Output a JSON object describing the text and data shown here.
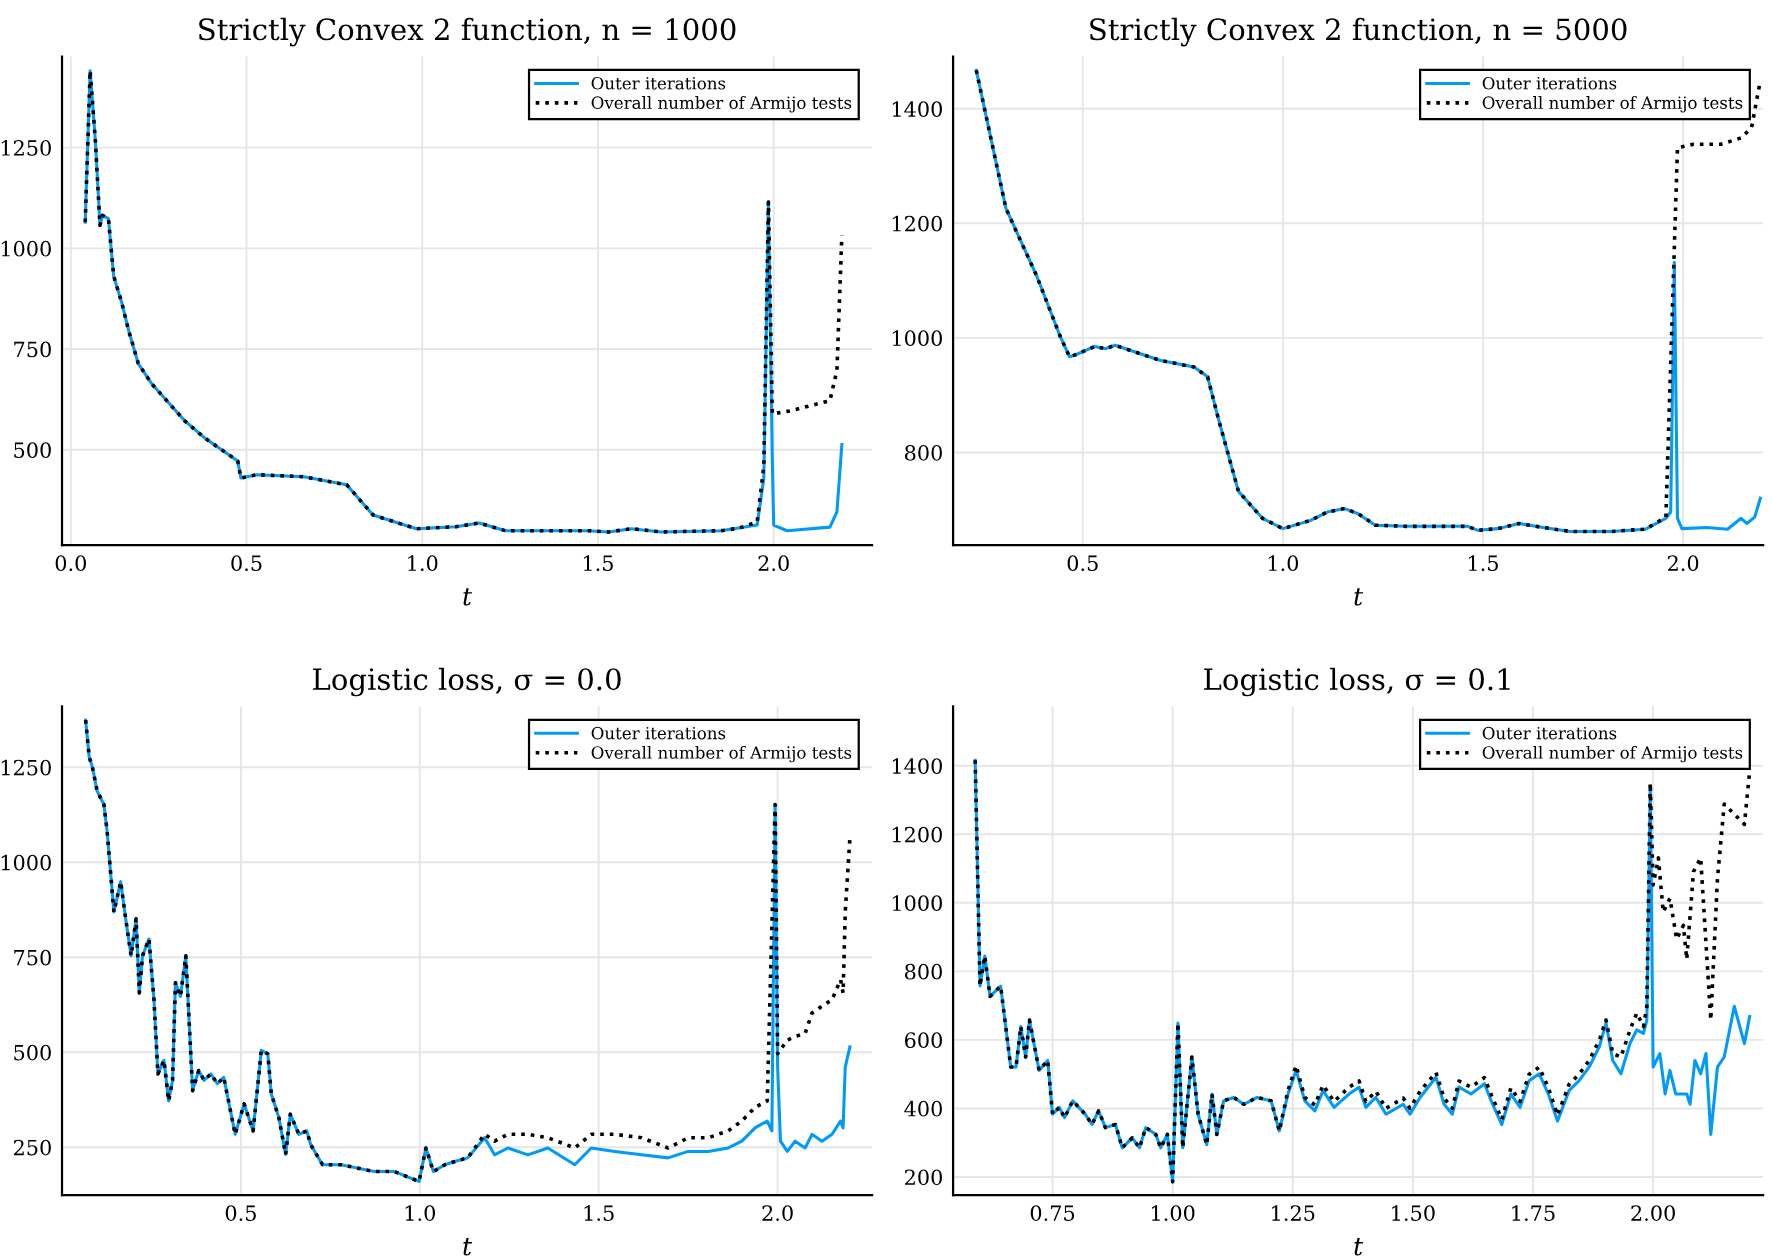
{
  "chart_data": [
    {
      "type": "line",
      "title": "Strictly Convex 2 function, n = 1000",
      "xlabel": "t",
      "xlim": [
        -0.025,
        2.28
      ],
      "ylim": [
        263,
        1476
      ],
      "xticks": [
        {
          "value": 0.0,
          "label": "0.0"
        },
        0.5,
        {
          "value": 1.0,
          "label": "1.0"
        },
        1.5,
        {
          "value": 2.0,
          "label": "2.0"
        }
      ],
      "yticks": [
        500,
        750,
        1000,
        1250
      ],
      "grid": true,
      "legend": "top right",
      "tick_labels": "both",
      "series": [
        {
          "name": "Outer iterations",
          "color": "#009af9",
          "line_style": "solid",
          "x": [
            0.041,
            0.055,
            0.07,
            0.083,
            0.09,
            0.107,
            0.122,
            0.145,
            0.164,
            0.192,
            0.23,
            0.324,
            0.38,
            0.475,
            0.484,
            0.53,
            0.663,
            0.785,
            0.86,
            0.983,
            1.096,
            1.162,
            1.237,
            1.473,
            1.53,
            1.595,
            1.68,
            1.85,
            1.953,
            1.972,
            1.985,
            1.996,
            2.0,
            2.038,
            2.16,
            2.18,
            2.194
          ],
          "values": [
            1065,
            1441,
            1266,
            1057,
            1082,
            1074,
            931,
            865,
            798,
            714,
            664,
            572,
            530,
            472,
            430,
            438,
            433,
            413,
            338,
            304,
            309,
            318,
            299,
            299,
            296,
            304,
            296,
            299,
            313,
            430,
            1115,
            480,
            313,
            299,
            308,
            346,
            513
          ]
        },
        {
          "name": "Overall number of Armijo tests",
          "color": "#000000",
          "line_style": "dotted",
          "x": [
            0.041,
            0.055,
            0.07,
            0.083,
            0.09,
            0.107,
            0.122,
            0.145,
            0.164,
            0.192,
            0.23,
            0.324,
            0.38,
            0.475,
            0.484,
            0.53,
            0.663,
            0.785,
            0.86,
            0.983,
            1.096,
            1.162,
            1.237,
            1.473,
            1.53,
            1.595,
            1.68,
            1.85,
            1.9,
            1.953,
            1.972,
            1.985,
            1.996,
            2.05,
            2.16,
            2.18,
            2.194
          ],
          "values": [
            1065,
            1441,
            1266,
            1057,
            1082,
            1074,
            931,
            865,
            798,
            714,
            664,
            572,
            530,
            472,
            430,
            438,
            433,
            413,
            338,
            304,
            309,
            318,
            299,
            299,
            296,
            304,
            296,
            299,
            305,
            321,
            460,
            1115,
            589,
            597,
            622,
            697,
            1032
          ]
        }
      ]
    },
    {
      "type": "line",
      "title": "Strictly Convex 2 function, n = 5000",
      "xlabel": "t",
      "xlim": [
        0.176,
        2.2
      ],
      "ylim": [
        638,
        1491
      ],
      "xticks": [
        0.5,
        {
          "value": 1.0,
          "label": "1.0"
        },
        1.5,
        {
          "value": 2.0,
          "label": "2.0"
        }
      ],
      "yticks": [
        800,
        1000,
        1200,
        1400
      ],
      "grid": true,
      "legend": "top right",
      "tick_labels": "both",
      "series": [
        {
          "name": "Outer iterations",
          "color": "#009af9",
          "line_style": "solid",
          "x": [
            0.234,
            0.308,
            0.385,
            0.444,
            0.467,
            0.484,
            0.53,
            0.556,
            0.581,
            0.692,
            0.778,
            0.812,
            0.838,
            0.889,
            0.949,
            1.0,
            1.068,
            1.111,
            1.154,
            1.188,
            1.231,
            1.308,
            1.462,
            1.487,
            1.538,
            1.59,
            1.65,
            1.718,
            1.82,
            1.906,
            1.957,
            1.969,
            1.978,
            1.986,
            1.997,
            2.06,
            2.111,
            2.145,
            2.159,
            2.179,
            2.193
          ],
          "values": [
            1467,
            1226,
            1108,
            1002,
            967,
            971,
            985,
            981,
            987,
            961,
            949,
            932,
            861,
            732,
            685,
            667,
            681,
            696,
            702,
            693,
            673,
            671,
            671,
            664,
            667,
            676,
            669,
            662,
            662,
            666,
            685,
            696,
            1132,
            685,
            667,
            669,
            666,
            685,
            676,
            687,
            720
          ]
        },
        {
          "name": "Overall number of Armijo tests",
          "color": "#000000",
          "line_style": "dotted",
          "x": [
            0.234,
            0.308,
            0.385,
            0.444,
            0.467,
            0.484,
            0.53,
            0.556,
            0.581,
            0.692,
            0.778,
            0.812,
            0.838,
            0.889,
            0.949,
            1.0,
            1.068,
            1.111,
            1.154,
            1.188,
            1.231,
            1.308,
            1.462,
            1.487,
            1.538,
            1.59,
            1.65,
            1.718,
            1.82,
            1.906,
            1.923,
            1.957,
            1.978,
            1.986,
            2.026,
            2.094,
            2.145,
            2.171,
            2.193
          ],
          "values": [
            1467,
            1226,
            1108,
            1002,
            967,
            971,
            985,
            981,
            987,
            961,
            949,
            932,
            861,
            732,
            685,
            667,
            681,
            696,
            702,
            693,
            673,
            671,
            671,
            664,
            667,
            676,
            669,
            662,
            662,
            666,
            673,
            687,
            1155,
            1332,
            1338,
            1338,
            1349,
            1367,
            1449
          ]
        }
      ]
    },
    {
      "type": "line",
      "title": "Logistic loss, σ = 0.0",
      "xlabel": "t",
      "xlim": [
        0.0,
        2.264
      ],
      "ylim": [
        124,
        1410
      ],
      "xticks": [
        0.5,
        {
          "value": 1.0,
          "label": "1.0"
        },
        1.5,
        {
          "value": 2.0,
          "label": "2.0"
        }
      ],
      "yticks": [
        250,
        500,
        750,
        1000,
        1250
      ],
      "grid": true,
      "legend": "top right",
      "tick_labels": "both",
      "series": [
        {
          "name": "Outer iterations",
          "color": "#009af9",
          "line_style": "solid",
          "x": [
            0.066,
            0.076,
            0.085,
            0.098,
            0.117,
            0.126,
            0.145,
            0.164,
            0.178,
            0.193,
            0.207,
            0.216,
            0.225,
            0.243,
            0.257,
            0.268,
            0.285,
            0.298,
            0.309,
            0.317,
            0.331,
            0.346,
            0.365,
            0.382,
            0.397,
            0.416,
            0.434,
            0.452,
            0.484,
            0.509,
            0.534,
            0.557,
            0.575,
            0.585,
            0.606,
            0.625,
            0.638,
            0.662,
            0.684,
            0.695,
            0.728,
            0.78,
            0.826,
            0.873,
            0.929,
            0.976,
            0.998,
            1.017,
            1.038,
            1.07,
            1.1,
            1.134,
            1.181,
            1.209,
            1.246,
            1.302,
            1.358,
            1.433,
            1.479,
            1.545,
            1.62,
            1.694,
            1.75,
            1.806,
            1.862,
            1.9,
            1.937,
            1.971,
            1.984,
            1.993,
            2.0,
            2.008,
            2.027,
            2.049,
            2.077,
            2.096,
            2.124,
            2.152,
            2.176,
            2.183,
            2.189,
            2.202
          ],
          "values": [
            1374,
            1277,
            1250,
            1188,
            1152,
            1082,
            869,
            949,
            851,
            754,
            851,
            656,
            754,
            798,
            638,
            443,
            479,
            372,
            426,
            683,
            647,
            754,
            399,
            452,
            426,
            443,
            417,
            434,
            284,
            364,
            293,
            505,
            496,
            390,
            328,
            231,
            337,
            284,
            293,
            257,
            204,
            204,
            195,
            186,
            186,
            168,
            160,
            248,
            186,
            204,
            213,
            222,
            275,
            230,
            248,
            230,
            248,
            204,
            248,
            239,
            230,
            222,
            239,
            239,
            248,
            266,
            301,
            319,
            293,
            1152,
            461,
            266,
            239,
            266,
            248,
            284,
            266,
            284,
            319,
            301,
            461,
            514
          ]
        },
        {
          "name": "Overall number of Armijo tests",
          "color": "#000000",
          "line_style": "dotted",
          "x": [
            0.066,
            0.076,
            0.085,
            0.098,
            0.117,
            0.126,
            0.145,
            0.164,
            0.178,
            0.193,
            0.207,
            0.216,
            0.225,
            0.243,
            0.257,
            0.268,
            0.285,
            0.298,
            0.309,
            0.317,
            0.331,
            0.346,
            0.365,
            0.382,
            0.397,
            0.416,
            0.434,
            0.452,
            0.484,
            0.509,
            0.534,
            0.557,
            0.575,
            0.585,
            0.606,
            0.625,
            0.638,
            0.662,
            0.684,
            0.695,
            0.728,
            0.78,
            0.826,
            0.873,
            0.929,
            0.976,
            0.998,
            1.017,
            1.038,
            1.07,
            1.1,
            1.134,
            1.181,
            1.209,
            1.246,
            1.302,
            1.358,
            1.433,
            1.479,
            1.545,
            1.62,
            1.694,
            1.75,
            1.806,
            1.862,
            1.9,
            1.937,
            1.971,
            1.993,
            2.0,
            2.027,
            2.049,
            2.077,
            2.096,
            2.124,
            2.152,
            2.176,
            2.183,
            2.189,
            2.202
          ],
          "values": [
            1374,
            1277,
            1250,
            1188,
            1152,
            1082,
            869,
            949,
            851,
            754,
            851,
            656,
            754,
            798,
            638,
            443,
            479,
            372,
            426,
            683,
            647,
            754,
            399,
            452,
            426,
            443,
            417,
            434,
            284,
            364,
            293,
            505,
            496,
            390,
            328,
            231,
            337,
            284,
            293,
            257,
            204,
            204,
            195,
            186,
            186,
            168,
            160,
            248,
            186,
            204,
            213,
            222,
            284,
            266,
            284,
            284,
            275,
            248,
            284,
            284,
            275,
            248,
            275,
            275,
            293,
            319,
            355,
            372,
            1152,
            496,
            532,
            541,
            550,
            603,
            621,
            638,
            691,
            656,
            869,
            1064
          ]
        }
      ]
    },
    {
      "type": "line",
      "title": "Logistic loss, σ = 0.1",
      "xlabel": "t",
      "xlim": [
        0.543,
        2.229
      ],
      "ylim": [
        147,
        1573
      ],
      "xticks": [
        0.75,
        {
          "value": 1.0,
          "label": "1.00"
        },
        1.25,
        {
          "value": 1.5,
          "label": "1.50"
        },
        1.75,
        {
          "value": 2.0,
          "label": "2.00"
        }
      ],
      "yticks": [
        200,
        400,
        600,
        800,
        1000,
        1200,
        1400
      ],
      "grid": true,
      "legend": "top right",
      "tick_labels": "both",
      "series": [
        {
          "name": "Outer iterations",
          "color": "#009af9",
          "line_style": "solid",
          "x": [
            0.589,
            0.599,
            0.609,
            0.62,
            0.642,
            0.663,
            0.674,
            0.684,
            0.694,
            0.702,
            0.722,
            0.74,
            0.75,
            0.764,
            0.775,
            0.792,
            0.818,
            0.832,
            0.846,
            0.86,
            0.881,
            0.895,
            0.916,
            0.931,
            0.944,
            0.965,
            0.975,
            0.989,
            1.0,
            1.011,
            1.021,
            1.04,
            1.053,
            1.071,
            1.082,
            1.092,
            1.106,
            1.127,
            1.148,
            1.176,
            1.205,
            1.222,
            1.24,
            1.257,
            1.275,
            1.296,
            1.313,
            1.336,
            1.367,
            1.388,
            1.402,
            1.423,
            1.444,
            1.48,
            1.494,
            1.515,
            1.548,
            1.565,
            1.582,
            1.596,
            1.621,
            1.649,
            1.663,
            1.685,
            1.704,
            1.723,
            1.742,
            1.763,
            1.782,
            1.801,
            1.825,
            1.846,
            1.867,
            1.888,
            1.902,
            1.916,
            1.933,
            1.952,
            1.966,
            1.98,
            1.987,
            1.994,
            2.0,
            2.014,
            2.025,
            2.035,
            2.047,
            2.07,
            2.077,
            2.087,
            2.099,
            2.11,
            2.12,
            2.134,
            2.148,
            2.169,
            2.19,
            2.201
          ],
          "values": [
            1416,
            757,
            845,
            727,
            757,
            521,
            521,
            639,
            550,
            658,
            511,
            540,
            383,
            403,
            373,
            422,
            383,
            353,
            393,
            344,
            353,
            285,
            314,
            285,
            344,
            324,
            285,
            324,
            186,
            649,
            285,
            550,
            383,
            294,
            442,
            324,
            422,
            432,
            412,
            432,
            422,
            334,
            442,
            511,
            422,
            393,
            452,
            403,
            442,
            462,
            403,
            432,
            383,
            412,
            383,
            432,
            491,
            412,
            383,
            462,
            442,
            472,
            422,
            353,
            442,
            403,
            481,
            501,
            442,
            363,
            452,
            481,
            521,
            580,
            649,
            540,
            501,
            590,
            629,
            619,
            658,
            1340,
            521,
            560,
            442,
            511,
            442,
            442,
            412,
            540,
            501,
            560,
            324,
            521,
            550,
            698,
            589,
            668
          ]
        },
        {
          "name": "Overall number of Armijo tests",
          "color": "#000000",
          "line_style": "dotted",
          "x": [
            0.589,
            0.599,
            0.609,
            0.62,
            0.642,
            0.663,
            0.674,
            0.684,
            0.694,
            0.702,
            0.722,
            0.74,
            0.75,
            0.764,
            0.775,
            0.792,
            0.818,
            0.832,
            0.846,
            0.86,
            0.881,
            0.895,
            0.916,
            0.931,
            0.944,
            0.965,
            0.975,
            0.989,
            1.0,
            1.011,
            1.021,
            1.04,
            1.053,
            1.071,
            1.082,
            1.092,
            1.106,
            1.127,
            1.148,
            1.176,
            1.205,
            1.222,
            1.24,
            1.257,
            1.275,
            1.296,
            1.313,
            1.336,
            1.367,
            1.388,
            1.402,
            1.423,
            1.444,
            1.48,
            1.494,
            1.515,
            1.548,
            1.565,
            1.582,
            1.596,
            1.621,
            1.649,
            1.663,
            1.685,
            1.704,
            1.723,
            1.742,
            1.763,
            1.782,
            1.801,
            1.825,
            1.846,
            1.867,
            1.888,
            1.902,
            1.916,
            1.933,
            1.952,
            1.966,
            1.98,
            1.987,
            1.994,
            2.0,
            2.011,
            2.021,
            2.035,
            2.049,
            2.063,
            2.07,
            2.084,
            2.099,
            2.12,
            2.134,
            2.148,
            2.19,
            2.201
          ],
          "values": [
            1416,
            757,
            845,
            727,
            757,
            521,
            521,
            639,
            550,
            658,
            511,
            540,
            383,
            403,
            373,
            422,
            383,
            353,
            393,
            344,
            353,
            285,
            314,
            285,
            344,
            324,
            285,
            324,
            186,
            649,
            285,
            550,
            383,
            294,
            442,
            324,
            422,
            432,
            412,
            432,
            422,
            334,
            452,
            525,
            432,
            410,
            468,
            420,
            462,
            480,
            420,
            450,
            400,
            430,
            400,
            450,
            505,
            430,
            400,
            480,
            462,
            490,
            440,
            368,
            460,
            420,
            500,
            520,
            460,
            380,
            470,
            500,
            540,
            599,
            658,
            560,
            550,
            629,
            678,
            639,
            698,
            1350,
            1052,
            1131,
            973,
            1013,
            894,
            934,
            835,
            1091,
            1131,
            658,
            1072,
            1288,
            1229,
            1386
          ]
        }
      ]
    }
  ]
}
